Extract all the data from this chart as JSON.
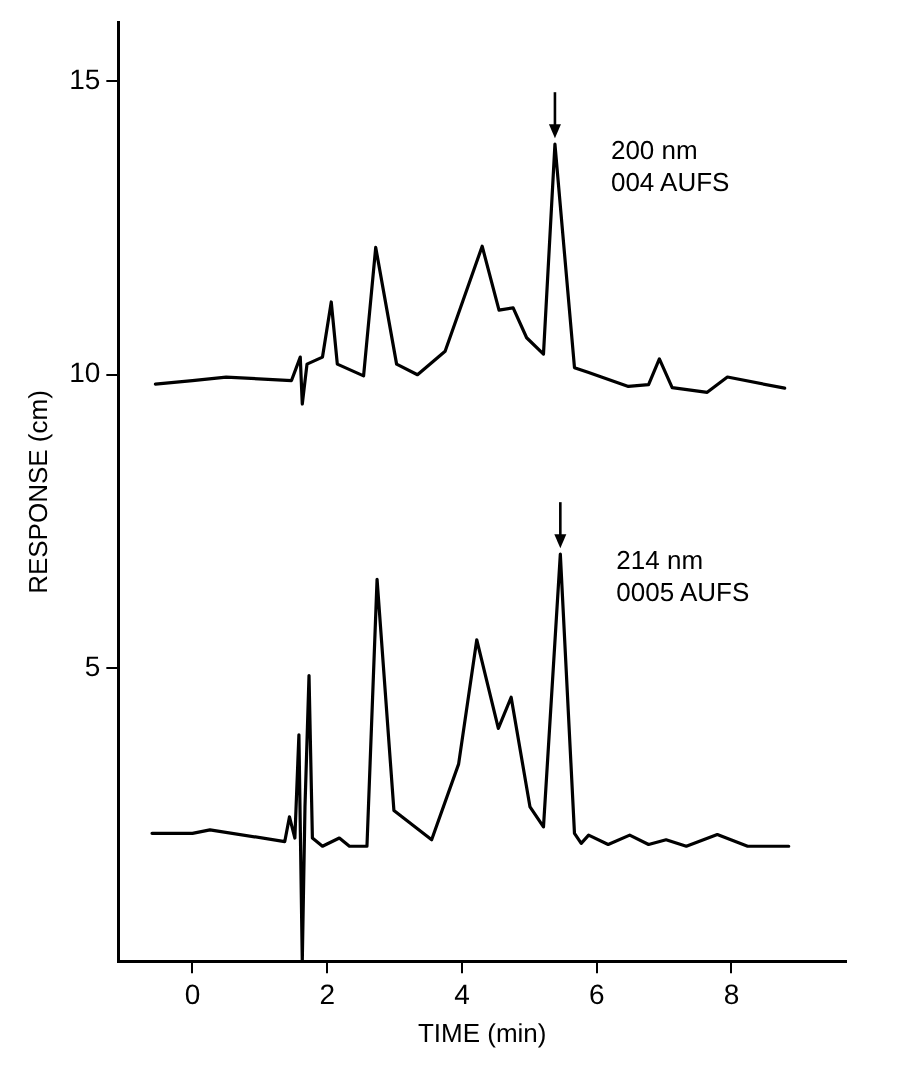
{
  "chart_data": {
    "type": "line",
    "xlabel": "TIME (min)",
    "ylabel": "RESPONSE (cm)",
    "xlim": [
      -1.1,
      9.7
    ],
    "xticks": [
      0,
      2,
      4,
      6,
      8
    ],
    "ylim": [
      0,
      16
    ],
    "yticks": [
      5,
      10,
      15
    ],
    "grid": false,
    "legend": false,
    "marker": "none",
    "line_style": "solid",
    "series": [
      {
        "name": "200 nm\n004 AUFS",
        "color": "#000000",
        "x": [
          -0.55,
          0,
          0.5,
          1.47,
          1.6,
          1.63,
          1.7,
          1.93,
          2.06,
          2.15,
          2.54,
          2.72,
          3.03,
          3.34,
          3.75,
          4.3,
          4.55,
          4.76,
          4.96,
          5.21,
          5.38,
          5.67,
          5.87,
          6.47,
          6.77,
          6.93,
          7.12,
          7.64,
          7.94,
          8.79
        ],
        "values": [
          9.84,
          9.9,
          9.96,
          9.9,
          10.3,
          9.5,
          10.18,
          10.3,
          11.24,
          10.18,
          9.98,
          12.17,
          10.18,
          10.0,
          10.4,
          12.19,
          11.1,
          11.14,
          10.63,
          10.35,
          13.93,
          10.12,
          10.04,
          9.8,
          9.83,
          10.27,
          9.78,
          9.7,
          9.96,
          9.77
        ]
      },
      {
        "name": "214 nm\n0005 AUFS",
        "color": "#000000",
        "x": [
          -0.6,
          0,
          0.26,
          1.37,
          1.44,
          1.52,
          1.58,
          1.63,
          1.67,
          1.73,
          1.78,
          1.93,
          2.18,
          2.33,
          2.59,
          2.74,
          2.99,
          3.55,
          3.95,
          4.22,
          4.54,
          4.73,
          5.01,
          5.21,
          5.46,
          5.67,
          5.77,
          5.88,
          6.17,
          6.49,
          6.77,
          7.03,
          7.33,
          7.79,
          8.24,
          8.85
        ],
        "values": [
          2.18,
          2.18,
          2.24,
          2.04,
          2.46,
          2.1,
          3.86,
          0.0,
          2.63,
          4.87,
          2.1,
          1.96,
          2.1,
          1.96,
          1.96,
          6.51,
          2.57,
          2.07,
          3.36,
          5.48,
          3.97,
          4.5,
          2.63,
          2.29,
          6.94,
          2.18,
          2.01,
          2.15,
          1.99,
          2.15,
          1.99,
          2.07,
          1.96,
          2.16,
          1.96,
          1.96
        ]
      }
    ]
  }
}
